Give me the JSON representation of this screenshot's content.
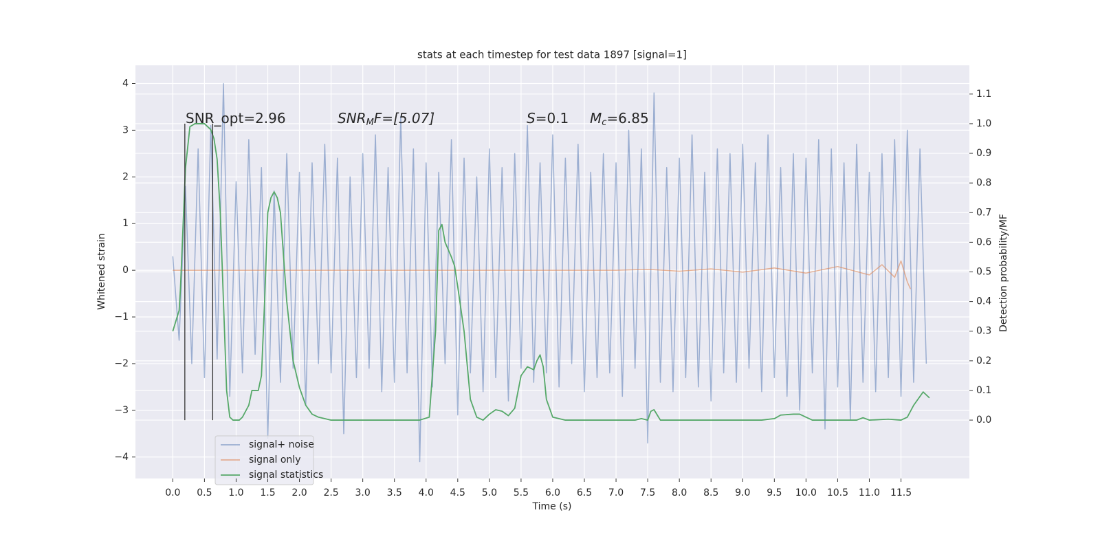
{
  "chart_data": {
    "type": "line",
    "title": "stats at each timestep for test data 1897 [signal=1]",
    "xlabel": "Time (s)",
    "ylabel": "Whitened strain",
    "y2label": "Detection probability/MF",
    "xlim": [
      -0.59,
      12.58
    ],
    "ylim": [
      -4.46,
      4.39
    ],
    "y2lim": [
      -0.197,
      1.197
    ],
    "grid": true,
    "legend": "lower left",
    "xticks": [
      {
        "value": 0,
        "label": "0.0"
      },
      {
        "value": 0.5,
        "label": "0.5"
      },
      {
        "value": 1,
        "label": "1.0"
      },
      {
        "value": 1.5,
        "label": "1.5"
      },
      {
        "value": 2,
        "label": "2.0"
      },
      {
        "value": 2.5,
        "label": "2.5"
      },
      {
        "value": 3,
        "label": "3.0"
      },
      {
        "value": 3.5,
        "label": "3.5"
      },
      {
        "value": 4,
        "label": "4.0"
      },
      {
        "value": 4.5,
        "label": "4.5"
      },
      {
        "value": 5,
        "label": "5.0"
      },
      {
        "value": 5.5,
        "label": "5.5"
      },
      {
        "value": 6,
        "label": "6.0"
      },
      {
        "value": 6.5,
        "label": "6.5"
      },
      {
        "value": 7,
        "label": "7.0"
      },
      {
        "value": 7.5,
        "label": "7.5"
      },
      {
        "value": 8,
        "label": "8.0"
      },
      {
        "value": 8.5,
        "label": "8.5"
      },
      {
        "value": 9,
        "label": "9.0"
      },
      {
        "value": 9.5,
        "label": "9.5"
      },
      {
        "value": 10,
        "label": "10.0"
      },
      {
        "value": 10.5,
        "label": "10.5"
      },
      {
        "value": 11,
        "label": "11.0"
      },
      {
        "value": 11.5,
        "label": "11.5"
      }
    ],
    "yticks": [
      {
        "value": -4,
        "label": "−4"
      },
      {
        "value": -3,
        "label": "−3"
      },
      {
        "value": -2,
        "label": "−2"
      },
      {
        "value": -1,
        "label": "−1"
      },
      0,
      1,
      2,
      3,
      4
    ],
    "y2ticks": [
      {
        "value": 0,
        "label": "0.0"
      },
      {
        "value": 0.1,
        "label": "0.1"
      },
      {
        "value": 0.2,
        "label": "0.2"
      },
      {
        "value": 0.3,
        "label": "0.3"
      },
      {
        "value": 0.4,
        "label": "0.4"
      },
      {
        "value": 0.5,
        "label": "0.5"
      },
      {
        "value": 0.6,
        "label": "0.6"
      },
      {
        "value": 0.7,
        "label": "0.7"
      },
      {
        "value": 0.8,
        "label": "0.8"
      },
      {
        "value": 0.9,
        "label": "0.9"
      },
      {
        "value": 1,
        "label": "1.0"
      },
      {
        "value": 1.1,
        "label": "1.1"
      }
    ],
    "annotations": [
      {
        "base": "SNR_opt=2.96"
      },
      {
        "base": "SNR",
        "sub": "M",
        "rest": "F=[5.07]"
      },
      {
        "base": "S",
        "rest": "=0.1"
      },
      {
        "base": "M",
        "sub": "c",
        "rest": "=6.85"
      }
    ],
    "vlines": {
      "x": [
        0.19,
        0.63
      ],
      "ymin": 0,
      "ymax": 1,
      "axis": "y2",
      "color": "#333333"
    },
    "series": [
      {
        "name": "signal+ noise",
        "color": "#4c72b0",
        "alpha": 0.5,
        "x": [
          0,
          0.1,
          0.2,
          0.3,
          0.4,
          0.5,
          0.6,
          0.7,
          0.8,
          0.9,
          1,
          1.1,
          1.2,
          1.3,
          1.4,
          1.5,
          1.6,
          1.7,
          1.8,
          1.9,
          2,
          2.1,
          2.2,
          2.3,
          2.4,
          2.5,
          2.6,
          2.7,
          2.8,
          2.9,
          3,
          3.1,
          3.2,
          3.3,
          3.4,
          3.5,
          3.6,
          3.7,
          3.8,
          3.9,
          4,
          4.1,
          4.2,
          4.3,
          4.4,
          4.5,
          4.6,
          4.7,
          4.8,
          4.9,
          5,
          5.1,
          5.2,
          5.3,
          5.4,
          5.5,
          5.6,
          5.7,
          5.8,
          5.9,
          6,
          6.1,
          6.2,
          6.3,
          6.4,
          6.5,
          6.6,
          6.7,
          6.8,
          6.9,
          7,
          7.1,
          7.2,
          7.3,
          7.4,
          7.5,
          7.6,
          7.7,
          7.8,
          7.9,
          8,
          8.1,
          8.2,
          8.3,
          8.4,
          8.5,
          8.6,
          8.7,
          8.8,
          8.9,
          9,
          9.1,
          9.2,
          9.3,
          9.4,
          9.5,
          9.6,
          9.7,
          9.8,
          9.9,
          10,
          10.1,
          10.2,
          10.3,
          10.4,
          10.5,
          10.6,
          10.7,
          10.8,
          10.9,
          11,
          11.1,
          11.2,
          11.3,
          11.4,
          11.5,
          11.6,
          11.7,
          11.8,
          11.9
        ],
        "values": [
          0.3,
          -1.5,
          1.8,
          -2.0,
          2.6,
          -2.3,
          3.1,
          -1.9,
          4.0,
          -2.7,
          1.9,
          -2.2,
          2.8,
          -1.8,
          2.2,
          -3.6,
          1.7,
          -2.4,
          2.5,
          -2.1,
          2.1,
          -2.9,
          2.3,
          -2.0,
          2.7,
          -2.2,
          2.4,
          -3.5,
          2.0,
          -2.3,
          2.5,
          -2.1,
          2.9,
          -2.6,
          2.2,
          -2.4,
          3.3,
          -2.2,
          2.6,
          -4.1,
          2.3,
          -2.5,
          2.1,
          -2.0,
          2.8,
          -3.1,
          2.4,
          -2.2,
          2.0,
          -2.6,
          2.6,
          -2.3,
          2.2,
          -2.8,
          2.5,
          -2.1,
          3.1,
          -2.4,
          2.3,
          -2.2,
          2.9,
          -2.5,
          2.4,
          -2.0,
          2.7,
          -2.6,
          2.1,
          -2.3,
          2.5,
          -2.2,
          2.3,
          -2.7,
          3.0,
          -2.1,
          2.6,
          -3.7,
          3.8,
          -2.4,
          2.2,
          -2.6,
          2.4,
          -2.3,
          2.9,
          -2.5,
          2.1,
          -2.8,
          2.6,
          -2.2,
          2.5,
          -2.4,
          2.7,
          -2.1,
          2.3,
          -2.6,
          2.9,
          -2.3,
          2.2,
          -2.7,
          2.5,
          -3.0,
          2.4,
          -2.2,
          2.8,
          -3.4,
          2.6,
          -2.5,
          2.3,
          -3.2,
          2.7,
          -2.4,
          2.1,
          -2.6,
          2.5,
          -2.3,
          2.8,
          -2.7,
          3.0,
          -2.4,
          2.6,
          -2.0
        ]
      },
      {
        "name": "signal only",
        "color": "#dd8452",
        "alpha": 0.6,
        "x": [
          0,
          1,
          2,
          3,
          4,
          5,
          6,
          7,
          7.5,
          8,
          8.5,
          9,
          9.5,
          10,
          10.5,
          11,
          11.2,
          11.4,
          11.5,
          11.6,
          11.65
        ],
        "values": [
          0,
          0,
          0,
          0,
          0,
          0,
          0,
          0,
          0.02,
          -0.02,
          0.03,
          -0.04,
          0.05,
          -0.06,
          0.08,
          -0.1,
          0.12,
          -0.15,
          0.2,
          -0.25,
          -0.4
        ]
      },
      {
        "name": "signal statistics",
        "color": "#55a868",
        "alpha": 1,
        "axis": "y2",
        "x": [
          0,
          0.1,
          0.12,
          0.2,
          0.27,
          0.35,
          0.5,
          0.6,
          0.65,
          0.7,
          0.75,
          0.8,
          0.85,
          0.9,
          0.95,
          1.05,
          1.1,
          1.2,
          1.25,
          1.35,
          1.4,
          1.45,
          1.5,
          1.55,
          1.6,
          1.65,
          1.7,
          1.8,
          1.9,
          2,
          2.1,
          2.2,
          2.3,
          2.5,
          2.7,
          2.9,
          3,
          3.5,
          3.9,
          4.05,
          4.15,
          4.2,
          4.25,
          4.3,
          4.4,
          4.45,
          4.5,
          4.6,
          4.7,
          4.8,
          4.9,
          5,
          5.1,
          5.2,
          5.3,
          5.4,
          5.5,
          5.6,
          5.7,
          5.75,
          5.8,
          5.85,
          5.9,
          6,
          6.2,
          7,
          7.3,
          7.4,
          7.5,
          7.55,
          7.6,
          7.7,
          8,
          9.3,
          9.5,
          9.6,
          9.8,
          9.9,
          10,
          10.1,
          10.8,
          10.9,
          11,
          11.3,
          11.5,
          11.6,
          11.7,
          11.85,
          11.95
        ],
        "values": [
          0.3,
          0.37,
          0.44,
          0.85,
          0.99,
          1.0,
          1.0,
          0.98,
          0.95,
          0.88,
          0.7,
          0.4,
          0.1,
          0.01,
          0.0,
          0.0,
          0.01,
          0.05,
          0.1,
          0.1,
          0.15,
          0.4,
          0.7,
          0.75,
          0.77,
          0.75,
          0.7,
          0.4,
          0.2,
          0.11,
          0.05,
          0.02,
          0.01,
          0.0,
          0.0,
          0.0,
          0.0,
          0.0,
          0.0,
          0.01,
          0.3,
          0.64,
          0.66,
          0.6,
          0.55,
          0.52,
          0.45,
          0.3,
          0.07,
          0.01,
          0.0,
          0.02,
          0.035,
          0.03,
          0.015,
          0.04,
          0.15,
          0.18,
          0.17,
          0.2,
          0.22,
          0.18,
          0.07,
          0.01,
          0.0,
          0.0,
          0.0,
          0.005,
          0.0,
          0.03,
          0.035,
          0.0,
          0.0,
          0.0,
          0.005,
          0.017,
          0.02,
          0.02,
          0.01,
          0.0,
          0.0,
          0.008,
          0.0,
          0.003,
          0.0,
          0.01,
          0.05,
          0.095,
          0.075
        ]
      }
    ]
  }
}
